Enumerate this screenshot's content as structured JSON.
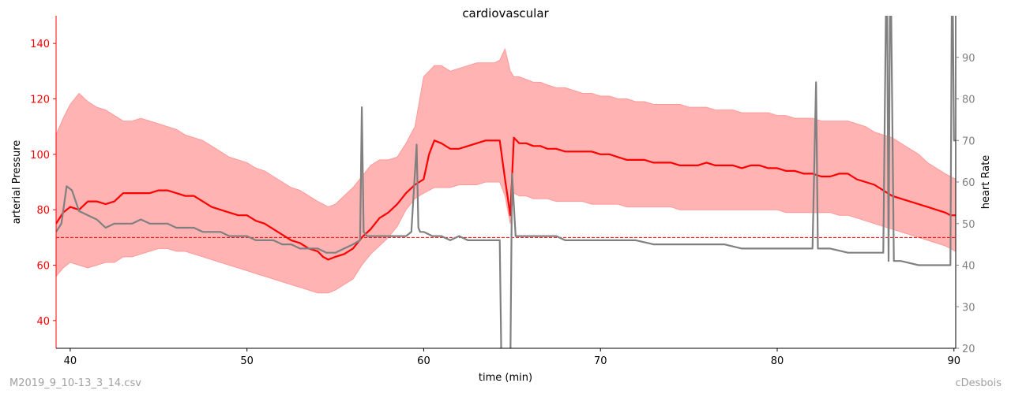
{
  "chart_data": {
    "type": "line",
    "title": "cardiovascular",
    "xlabel": "time (min)",
    "ylabel_left": "arterial Pressure",
    "ylabel_right": "heart Rate",
    "xlim": [
      39.2,
      90.1
    ],
    "ylim_left": [
      30,
      150
    ],
    "ylim_right": [
      20,
      100
    ],
    "x_ticks": [
      40,
      50,
      60,
      70,
      80,
      90
    ],
    "y_ticks_left": [
      40,
      60,
      80,
      100,
      120,
      140
    ],
    "y_ticks_right": [
      20,
      30,
      40,
      50,
      60,
      70,
      80,
      90
    ],
    "grid": false,
    "reference_line": {
      "axis": "left",
      "value": 70,
      "style": "dashed"
    },
    "colors": {
      "pressure": "#ff0000",
      "band": "#ff9999",
      "heart_rate": "#808080",
      "left_axis": "#ff0000",
      "right_axis": "#808080"
    },
    "series": [
      {
        "axis": "left",
        "color": "#ff0000",
        "x": [
          39.2,
          39.6,
          40.0,
          40.5,
          41.0,
          41.5,
          42.0,
          42.5,
          43.0,
          43.5,
          44.0,
          44.5,
          45.0,
          45.5,
          46.0,
          46.5,
          47.0,
          47.5,
          48.0,
          48.5,
          49.0,
          49.5,
          50.0,
          50.5,
          51.0,
          51.5,
          52.0,
          52.5,
          53.0,
          53.5,
          54.0,
          54.3,
          54.6,
          55.0,
          55.5,
          56.0,
          56.5,
          57.0,
          57.5,
          58.0,
          58.5,
          59.0,
          59.5,
          60.0,
          60.3,
          60.6,
          61.0,
          61.5,
          62.0,
          62.5,
          63.0,
          63.5,
          64.0,
          64.3,
          64.6,
          64.9,
          65.1,
          65.4,
          65.8,
          66.2,
          66.6,
          67.0,
          67.5,
          68.0,
          68.5,
          69.0,
          69.5,
          70.0,
          70.5,
          71.0,
          71.5,
          72.0,
          72.5,
          73.0,
          73.5,
          74.0,
          74.5,
          75.0,
          75.5,
          76.0,
          76.5,
          77.0,
          77.5,
          78.0,
          78.5,
          79.0,
          79.5,
          80.0,
          80.5,
          81.0,
          81.5,
          82.0,
          82.5,
          83.0,
          83.5,
          84.0,
          84.5,
          85.0,
          85.5,
          86.0,
          86.5,
          87.0,
          87.5,
          88.0,
          88.5,
          89.0,
          89.5,
          89.8,
          90.1
        ],
        "values": [
          75,
          79,
          81,
          80,
          83,
          83,
          82,
          83,
          86,
          86,
          86,
          86,
          87,
          87,
          86,
          85,
          85,
          83,
          81,
          80,
          79,
          78,
          78,
          76,
          75,
          73,
          71,
          69,
          68,
          66,
          65,
          63,
          62,
          63,
          64,
          66,
          70,
          73,
          77,
          79,
          82,
          86,
          89,
          91,
          100,
          105,
          104,
          102,
          102,
          103,
          104,
          105,
          105,
          105,
          91,
          78,
          106,
          104,
          104,
          103,
          103,
          102,
          102,
          101,
          101,
          101,
          101,
          100,
          100,
          99,
          98,
          98,
          98,
          97,
          97,
          97,
          96,
          96,
          96,
          97,
          96,
          96,
          96,
          95,
          96,
          96,
          95,
          95,
          94,
          94,
          93,
          93,
          92,
          92,
          93,
          93,
          91,
          90,
          89,
          87,
          85,
          84,
          83,
          82,
          81,
          80,
          79,
          78,
          78
        ]
      },
      {
        "axis": "left",
        "x": [
          39.2,
          39.6,
          40.0,
          40.5,
          41.0,
          41.5,
          42.0,
          42.5,
          43.0,
          43.5,
          44.0,
          44.5,
          45.0,
          45.5,
          46.0,
          46.5,
          47.0,
          47.5,
          48.0,
          48.5,
          49.0,
          49.5,
          50.0,
          50.5,
          51.0,
          51.5,
          52.0,
          52.5,
          53.0,
          53.5,
          54.0,
          54.3,
          54.6,
          55.0,
          55.5,
          56.0,
          56.5,
          57.0,
          57.5,
          58.0,
          58.5,
          59.0,
          59.5,
          60.0,
          60.3,
          60.6,
          61.0,
          61.5,
          62.0,
          62.5,
          63.0,
          63.5,
          64.0,
          64.3,
          64.6,
          64.9,
          65.1,
          65.4,
          65.8,
          66.2,
          66.6,
          67.0,
          67.5,
          68.0,
          68.5,
          69.0,
          69.5,
          70.0,
          70.5,
          71.0,
          71.5,
          72.0,
          72.5,
          73.0,
          73.5,
          74.0,
          74.5,
          75.0,
          75.5,
          76.0,
          76.5,
          77.0,
          77.5,
          78.0,
          78.5,
          79.0,
          79.5,
          80.0,
          80.5,
          81.0,
          81.5,
          82.0,
          82.5,
          83.0,
          83.5,
          84.0,
          84.5,
          85.0,
          85.5,
          86.0,
          86.5,
          87.0,
          87.5,
          88.0,
          88.5,
          89.0,
          89.5,
          89.8,
          90.1
        ],
        "upper": [
          107,
          113,
          118,
          122,
          119,
          117,
          116,
          114,
          112,
          112,
          113,
          112,
          111,
          110,
          109,
          107,
          106,
          105,
          103,
          101,
          99,
          98,
          97,
          95,
          94,
          92,
          90,
          88,
          87,
          85,
          83,
          82,
          81,
          82,
          85,
          88,
          92,
          96,
          98,
          98,
          99,
          104,
          110,
          128,
          130,
          132,
          132,
          130,
          131,
          132,
          133,
          133,
          133,
          134,
          138,
          130,
          128,
          128,
          127,
          126,
          126,
          125,
          124,
          124,
          123,
          122,
          122,
          121,
          121,
          120,
          120,
          119,
          119,
          118,
          118,
          118,
          118,
          117,
          117,
          117,
          116,
          116,
          116,
          115,
          115,
          115,
          115,
          114,
          114,
          113,
          113,
          113,
          112,
          112,
          112,
          112,
          111,
          110,
          108,
          107,
          106,
          104,
          102,
          100,
          97,
          95,
          93,
          92,
          91
        ],
        "lower": [
          56,
          59,
          61,
          60,
          59,
          60,
          61,
          61,
          63,
          63,
          64,
          65,
          66,
          66,
          65,
          65,
          64,
          63,
          62,
          61,
          60,
          59,
          58,
          57,
          56,
          55,
          54,
          53,
          52,
          51,
          50,
          50,
          50,
          51,
          53,
          55,
          60,
          64,
          67,
          70,
          74,
          80,
          84,
          86,
          87,
          88,
          88,
          88,
          89,
          89,
          89,
          90,
          90,
          90,
          85,
          75,
          86,
          85,
          85,
          84,
          84,
          84,
          83,
          83,
          83,
          83,
          82,
          82,
          82,
          82,
          81,
          81,
          81,
          81,
          81,
          81,
          80,
          80,
          80,
          80,
          80,
          80,
          80,
          80,
          80,
          80,
          80,
          80,
          79,
          79,
          79,
          79,
          79,
          79,
          78,
          78,
          77,
          76,
          75,
          74,
          73,
          72,
          71,
          70,
          69,
          68,
          67,
          66,
          65
        ]
      },
      {
        "axis": "right",
        "color": "#808080",
        "x": [
          39.2,
          39.5,
          39.8,
          40.1,
          40.5,
          41.0,
          41.5,
          42.0,
          42.5,
          43.0,
          43.5,
          44.0,
          44.5,
          45.0,
          45.5,
          46.0,
          46.5,
          47.0,
          47.5,
          48.0,
          48.5,
          49.0,
          49.5,
          50.0,
          50.5,
          51.0,
          51.5,
          52.0,
          52.5,
          53.0,
          53.5,
          54.0,
          54.5,
          55.0,
          55.5,
          56.0,
          56.4,
          56.5,
          56.6,
          56.8,
          57.0,
          57.5,
          58.0,
          58.5,
          59.0,
          59.3,
          59.6,
          59.7,
          59.8,
          60.0,
          60.5,
          61.0,
          61.5,
          62.0,
          62.5,
          63.0,
          63.5,
          64.0,
          64.3,
          64.4,
          64.6,
          64.9,
          65.0,
          65.2,
          65.5,
          66.0,
          66.5,
          67.0,
          67.5,
          68.0,
          68.5,
          69.0,
          69.5,
          70.0,
          71.0,
          72.0,
          73.0,
          74.0,
          75.0,
          76.0,
          77.0,
          78.0,
          79.0,
          80.0,
          81.0,
          82.0,
          82.2,
          82.3,
          82.4,
          82.6,
          83.0,
          84.0,
          85.0,
          86.0,
          86.2,
          86.3,
          86.4,
          86.6,
          87.0,
          88.0,
          89.0,
          89.7,
          89.8,
          89.9,
          90.0,
          90.1
        ],
        "values": [
          48,
          50,
          59,
          58,
          53,
          52,
          51,
          49,
          50,
          50,
          50,
          51,
          50,
          50,
          50,
          49,
          49,
          49,
          48,
          48,
          48,
          47,
          47,
          47,
          46,
          46,
          46,
          45,
          45,
          44,
          44,
          44,
          43,
          43,
          44,
          45,
          46,
          78,
          48,
          47,
          47,
          47,
          47,
          47,
          47,
          48,
          69,
          49,
          48,
          48,
          47,
          47,
          46,
          47,
          46,
          46,
          46,
          46,
          46,
          15,
          15,
          15,
          62,
          47,
          47,
          47,
          47,
          47,
          47,
          46,
          46,
          46,
          46,
          46,
          46,
          46,
          45,
          45,
          45,
          45,
          45,
          44,
          44,
          44,
          44,
          44,
          84,
          44,
          44,
          44,
          44,
          43,
          43,
          43,
          120,
          41,
          120,
          41,
          41,
          40,
          40,
          40,
          40,
          120,
          70,
          70
        ]
      }
    ]
  },
  "footer": {
    "left": "M2019_9_10-13_3_14.csv",
    "right": "cDesbois"
  }
}
